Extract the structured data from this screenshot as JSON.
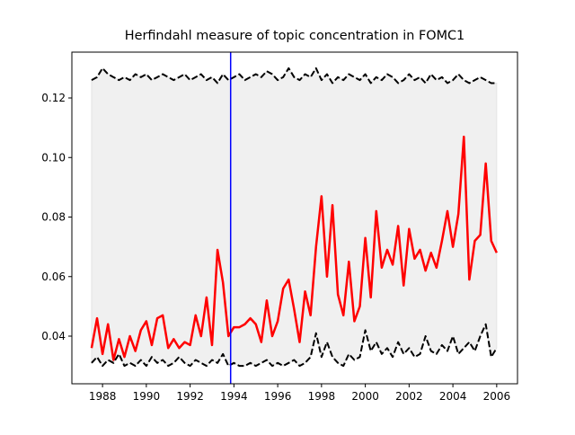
{
  "chart_data": {
    "type": "line",
    "title": "Herfindahl measure of topic concentration in FOMC1",
    "x": [
      1987.5,
      1987.75,
      1988.0,
      1988.25,
      1988.5,
      1988.75,
      1989.0,
      1989.25,
      1989.5,
      1989.75,
      1990.0,
      1990.25,
      1990.5,
      1990.75,
      1991.0,
      1991.25,
      1991.5,
      1991.75,
      1992.0,
      1992.25,
      1992.5,
      1992.75,
      1993.0,
      1993.25,
      1993.5,
      1993.75,
      1994.0,
      1994.25,
      1994.5,
      1994.75,
      1995.0,
      1995.25,
      1995.5,
      1995.75,
      1996.0,
      1996.25,
      1996.5,
      1996.75,
      1997.0,
      1997.25,
      1997.5,
      1997.75,
      1998.0,
      1998.25,
      1998.5,
      1998.75,
      1999.0,
      1999.25,
      1999.5,
      1999.75,
      2000.0,
      2000.25,
      2000.5,
      2000.75,
      2001.0,
      2001.25,
      2001.5,
      2001.75,
      2002.0,
      2002.25,
      2002.5,
      2002.75,
      2003.0,
      2003.25,
      2003.5,
      2003.75,
      2004.0,
      2004.25,
      2004.5,
      2004.75,
      2005.0,
      2005.25,
      2005.5,
      2005.75,
      2006.0
    ],
    "series": [
      {
        "color": "#ff0000",
        "style": "solid",
        "values": [
          0.036,
          0.046,
          0.034,
          0.044,
          0.032,
          0.039,
          0.033,
          0.04,
          0.035,
          0.042,
          0.045,
          0.037,
          0.046,
          0.047,
          0.036,
          0.039,
          0.036,
          0.038,
          0.037,
          0.047,
          0.04,
          0.053,
          0.037,
          0.069,
          0.058,
          0.04,
          0.043,
          0.043,
          0.044,
          0.046,
          0.044,
          0.038,
          0.052,
          0.04,
          0.045,
          0.056,
          0.059,
          0.049,
          0.038,
          0.055,
          0.047,
          0.07,
          0.087,
          0.06,
          0.084,
          0.054,
          0.047,
          0.065,
          0.045,
          0.05,
          0.073,
          0.053,
          0.082,
          0.063,
          0.069,
          0.064,
          0.077,
          0.057,
          0.076,
          0.066,
          0.069,
          0.062,
          0.068,
          0.063,
          0.072,
          0.082,
          0.07,
          0.081,
          0.107,
          0.059,
          0.072,
          0.074,
          0.098,
          0.072,
          0.068
        ]
      },
      {
        "color": "#000000",
        "style": "dashed",
        "values": [
          0.126,
          0.127,
          0.13,
          0.128,
          0.127,
          0.126,
          0.127,
          0.126,
          0.128,
          0.127,
          0.128,
          0.126,
          0.127,
          0.128,
          0.127,
          0.126,
          0.127,
          0.128,
          0.126,
          0.127,
          0.128,
          0.126,
          0.127,
          0.125,
          0.128,
          0.126,
          0.127,
          0.128,
          0.126,
          0.127,
          0.128,
          0.127,
          0.129,
          0.128,
          0.126,
          0.127,
          0.13,
          0.127,
          0.126,
          0.128,
          0.127,
          0.13,
          0.126,
          0.128,
          0.125,
          0.127,
          0.126,
          0.128,
          0.127,
          0.126,
          0.128,
          0.125,
          0.127,
          0.126,
          0.128,
          0.127,
          0.125,
          0.126,
          0.128,
          0.126,
          0.127,
          0.125,
          0.128,
          0.126,
          0.127,
          0.125,
          0.126,
          0.128,
          0.126,
          0.125,
          0.126,
          0.127,
          0.126,
          0.125,
          0.125
        ]
      },
      {
        "color": "#000000",
        "style": "dashed",
        "values": [
          0.031,
          0.033,
          0.03,
          0.032,
          0.031,
          0.034,
          0.03,
          0.031,
          0.03,
          0.032,
          0.03,
          0.033,
          0.031,
          0.032,
          0.03,
          0.031,
          0.033,
          0.031,
          0.03,
          0.032,
          0.031,
          0.03,
          0.032,
          0.031,
          0.034,
          0.03,
          0.031,
          0.03,
          0.03,
          0.031,
          0.03,
          0.031,
          0.032,
          0.03,
          0.031,
          0.03,
          0.031,
          0.032,
          0.03,
          0.031,
          0.033,
          0.041,
          0.033,
          0.038,
          0.033,
          0.031,
          0.03,
          0.034,
          0.032,
          0.033,
          0.042,
          0.035,
          0.038,
          0.034,
          0.036,
          0.033,
          0.038,
          0.034,
          0.036,
          0.033,
          0.034,
          0.04,
          0.035,
          0.034,
          0.037,
          0.035,
          0.04,
          0.034,
          0.036,
          0.038,
          0.035,
          0.04,
          0.044,
          0.033,
          0.036
        ]
      }
    ],
    "band_color": "#f0f0f0",
    "vline": {
      "x": 1993.85,
      "color": "#0000ff"
    },
    "xlim": [
      1986.6,
      2006.95
    ],
    "ylim": [
      0.024,
      0.1354
    ],
    "xticks": [
      1988,
      1990,
      1992,
      1994,
      1996,
      1998,
      2000,
      2002,
      2004,
      2006
    ],
    "yticks": [
      0.04,
      0.06,
      0.08,
      {
        "value": 0.1,
        "label": "0.10"
      },
      0.12
    ]
  }
}
